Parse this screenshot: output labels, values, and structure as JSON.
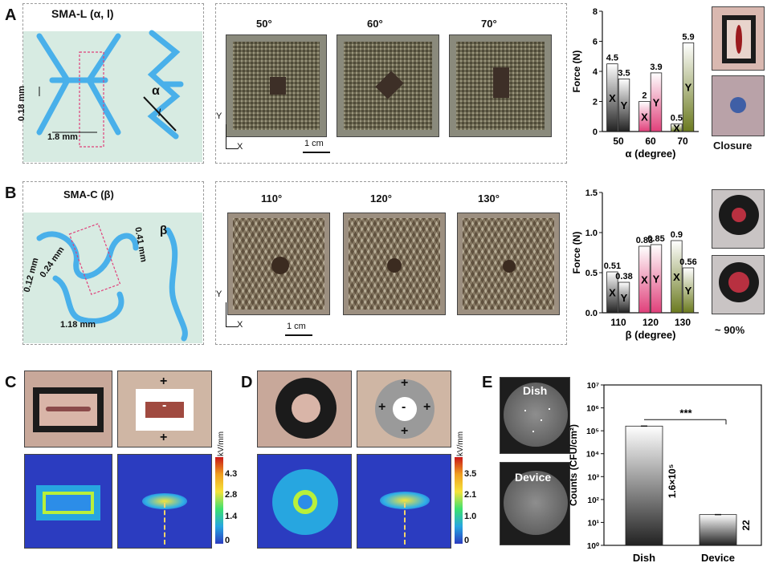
{
  "panels": {
    "a": {
      "letter": "A",
      "title": "SMA-L (α, l)",
      "dim_v": "0.18 mm",
      "dim_h": "1.8 mm",
      "alpha": "α",
      "l": "l",
      "angles": [
        "50°",
        "60°",
        "70°"
      ],
      "scale": "1 cm",
      "axis_x": "X",
      "axis_y": "Y",
      "closure": "Closure"
    },
    "b": {
      "letter": "B",
      "title": "SMA-C (β)",
      "dim1": "0.12 mm",
      "dim2": "0.24 mm",
      "dim3": "1.18 mm",
      "dim4": "0.41 mm",
      "beta": "β",
      "angles": [
        "110°",
        "120°",
        "130°"
      ],
      "scale": "1 cm",
      "axis_x": "X",
      "axis_y": "Y",
      "closure": "~ 90%"
    },
    "c": {
      "letter": "C",
      "plus": "+",
      "minus": "-",
      "cb_label": "kV/mm",
      "cb_ticks": [
        "4.3",
        "2.8",
        "1.4",
        "0"
      ]
    },
    "d": {
      "letter": "D",
      "plus": "+",
      "minus": "-",
      "cb_label": "kV/mm",
      "cb_ticks": [
        "3.5",
        "2.1",
        "1.0",
        "0"
      ]
    },
    "e": {
      "letter": "E",
      "dish": "Dish",
      "device": "Device",
      "sig": "***",
      "ann_dish": "1.6×10⁵",
      "ann_device": "22"
    }
  },
  "chart_data": [
    {
      "type": "bar",
      "categories": [
        "50",
        "60",
        "70"
      ],
      "xlabel": "α (degree)",
      "ylabel": "Force (N)",
      "ylim": [
        0,
        8
      ],
      "yticks": [
        "0",
        "2",
        "4",
        "6",
        "8"
      ],
      "series": [
        {
          "name": "X",
          "values": [
            4.5,
            2.0,
            0.5
          ]
        },
        {
          "name": "Y",
          "values": [
            3.5,
            3.9,
            5.9
          ]
        }
      ],
      "colors": [
        "#222222",
        "#e0407a",
        "#6b7a1f"
      ]
    },
    {
      "type": "bar",
      "categories": [
        "110",
        "120",
        "130"
      ],
      "xlabel": "β (degree)",
      "ylabel": "Force (N)",
      "ylim": [
        0,
        1.5
      ],
      "yticks": [
        "0.0",
        "0.5",
        "1.0",
        "1.5"
      ],
      "series": [
        {
          "name": "X",
          "values": [
            0.51,
            0.83,
            0.9
          ]
        },
        {
          "name": "Y",
          "values": [
            0.38,
            0.85,
            0.56
          ]
        }
      ],
      "colors": [
        "#222222",
        "#e0407a",
        "#6b7a1f"
      ]
    },
    {
      "type": "bar",
      "categories": [
        "Dish",
        "Device"
      ],
      "ylabel": "Counts (CFU/cm²)",
      "scale": "log",
      "ylim": [
        1,
        10000000
      ],
      "yticks": [
        "10⁰",
        "10¹",
        "10²",
        "10³",
        "10⁴",
        "10⁵",
        "10⁶",
        "10⁷"
      ],
      "values": [
        160000,
        22
      ]
    }
  ]
}
